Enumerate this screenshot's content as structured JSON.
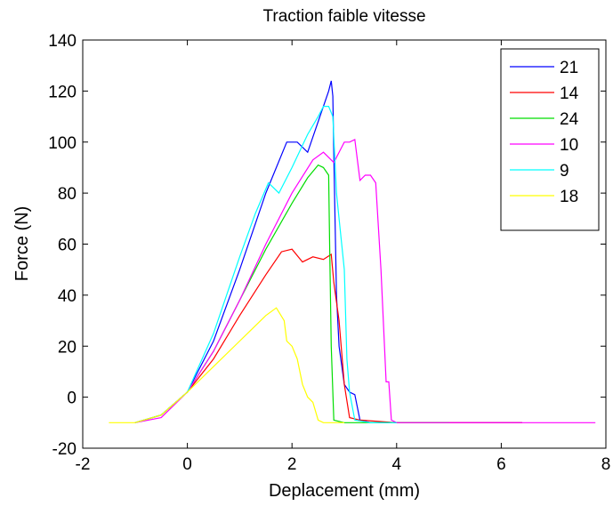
{
  "chart_data": {
    "type": "line",
    "title": "Traction faible vitesse",
    "xlabel": "Deplacement (mm)",
    "ylabel": "Force (N)",
    "xlim": [
      -2,
      8
    ],
    "ylim": [
      -20,
      140
    ],
    "xticks": [
      -2,
      0,
      2,
      4,
      6,
      8
    ],
    "yticks": [
      -20,
      0,
      20,
      40,
      60,
      80,
      100,
      120,
      140
    ],
    "grid": false,
    "legend_position": "top-right",
    "series": [
      {
        "name": "21",
        "color": "#0000ff",
        "x": [
          -1.0,
          -0.5,
          0.0,
          0.5,
          1.0,
          1.5,
          1.9,
          2.1,
          2.3,
          2.5,
          2.7,
          2.75,
          2.78,
          2.8,
          2.85,
          2.9,
          3.0,
          3.1,
          3.2,
          3.3,
          3.5,
          4.0,
          5.0,
          6.0,
          6.4
        ],
        "y": [
          -10,
          -7,
          2,
          22,
          50,
          80,
          100,
          100,
          96,
          108,
          120,
          124,
          118,
          95,
          40,
          20,
          5,
          2,
          1,
          -9,
          -10,
          -10,
          -10,
          -10,
          -10
        ]
      },
      {
        "name": "14",
        "color": "#ff0000",
        "x": [
          -1.0,
          -0.5,
          0.0,
          0.5,
          1.0,
          1.5,
          1.8,
          2.0,
          2.2,
          2.4,
          2.6,
          2.75,
          2.8,
          2.9,
          3.0,
          3.1,
          3.3,
          4.0,
          5.0,
          6.0,
          6.4
        ],
        "y": [
          -10,
          -7,
          2,
          15,
          32,
          48,
          57,
          58,
          53,
          55,
          54,
          56,
          45,
          30,
          5,
          -8,
          -9,
          -10,
          -10,
          -10,
          -10
        ]
      },
      {
        "name": "24",
        "color": "#00dd00",
        "x": [
          -1.0,
          -0.5,
          0.0,
          0.5,
          1.0,
          1.5,
          2.0,
          2.3,
          2.5,
          2.6,
          2.7,
          2.72,
          2.75,
          2.8,
          3.0,
          4.0,
          5.0
        ],
        "y": [
          -10,
          -7,
          2,
          18,
          38,
          58,
          76,
          86,
          91,
          90,
          87,
          60,
          20,
          -9,
          -10,
          -10,
          -10
        ]
      },
      {
        "name": "10",
        "color": "#ff00ff",
        "x": [
          -1.0,
          -0.5,
          0.0,
          0.5,
          1.0,
          1.5,
          2.0,
          2.4,
          2.6,
          2.8,
          3.0,
          3.1,
          3.2,
          3.3,
          3.4,
          3.5,
          3.6,
          3.7,
          3.8,
          3.85,
          3.9,
          4.0,
          5.0,
          6.0,
          7.0,
          7.8
        ],
        "y": [
          -10,
          -8,
          2,
          18,
          38,
          60,
          80,
          93,
          96,
          92,
          100,
          100,
          101,
          85,
          87,
          87,
          84,
          50,
          6,
          6,
          -9,
          -10,
          -10,
          -10,
          -10,
          -10
        ]
      },
      {
        "name": "9",
        "color": "#00ffff",
        "x": [
          -1.0,
          -0.5,
          0.0,
          0.5,
          1.0,
          1.3,
          1.55,
          1.75,
          2.0,
          2.3,
          2.5,
          2.6,
          2.7,
          2.78,
          2.85,
          2.9,
          3.0,
          3.05,
          3.1,
          3.2,
          3.5,
          4.0
        ],
        "y": [
          -10,
          -7,
          2,
          25,
          55,
          72,
          84,
          80,
          90,
          103,
          110,
          114,
          114,
          110,
          80,
          70,
          50,
          15,
          2,
          -9,
          -10,
          -10
        ]
      },
      {
        "name": "18",
        "color": "#ffff00",
        "x": [
          -1.5,
          -1.0,
          -0.5,
          0.0,
          0.5,
          1.0,
          1.5,
          1.7,
          1.85,
          1.9,
          2.0,
          2.1,
          2.2,
          2.3,
          2.4,
          2.5,
          2.6,
          3.0
        ],
        "y": [
          -10,
          -10,
          -7,
          2,
          12,
          22,
          32,
          35,
          30,
          22,
          20,
          15,
          5,
          0,
          -2,
          -9,
          -10,
          -10
        ]
      }
    ]
  }
}
